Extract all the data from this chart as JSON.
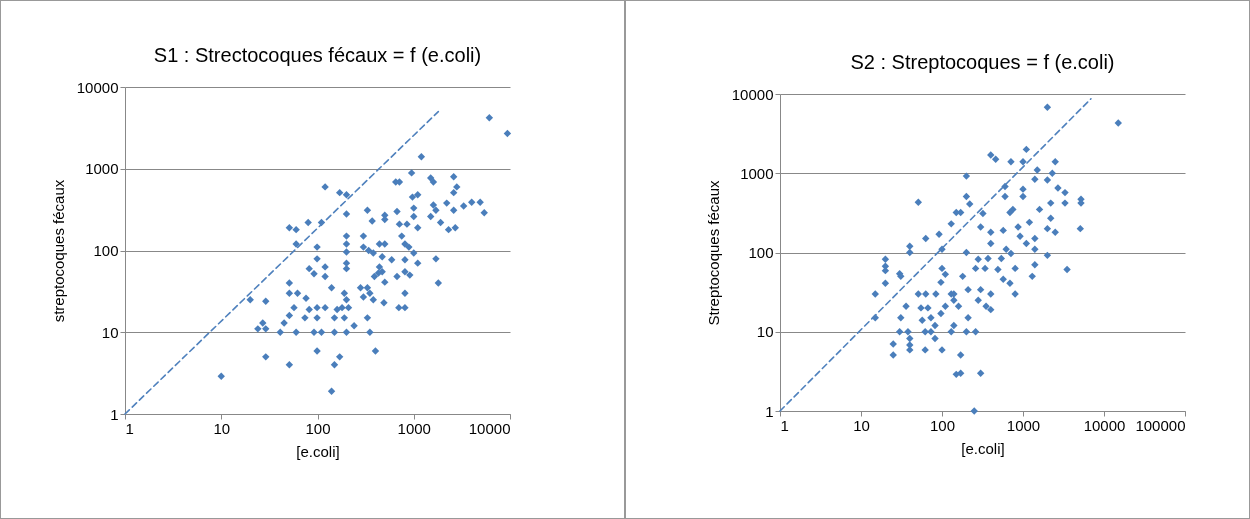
{
  "chart_data": [
    {
      "type": "scatter",
      "title": "S1 : Strectocoques fécaux = f (e.coli)",
      "xlabel": "[e.coli]",
      "ylabel": "streptocoques fécaux",
      "log": "xy",
      "grid": "y",
      "marker": "diamond",
      "xlim": [
        1,
        10000
      ],
      "xticks": [
        1,
        10,
        100,
        1000,
        10000
      ],
      "ylim": [
        1,
        10000
      ],
      "yticks": [
        1,
        10,
        100,
        1000,
        10000
      ],
      "series": [
        {
          "type": "scatter",
          "color": "#4a7ebb",
          "x": [
            51,
            60,
            80,
            60,
            82,
            51,
            51,
            62,
            76,
            57,
            51,
            74,
            45,
            20,
            29,
            27,
            24,
            29,
            41,
            60,
            29,
            51,
            10,
            6100,
            9400,
            1200,
            950,
            650,
            710,
            1500,
            1600,
            2600,
            2800,
            2600,
            1100,
            970,
            120,
            170,
            200,
            2200,
            3300,
            4000,
            4900,
            5400,
            1600,
            1700,
            1500,
            1900,
            2600,
            2300,
            2700,
            1000,
            1000,
            1100,
            710,
            850,
            670,
            500,
            500,
            370,
            330,
            200,
            110,
            99,
            99,
            92,
            120,
            120,
            200,
            200,
            200,
            200,
            200,
            300,
            300,
            340,
            380,
            440,
            500,
            470,
            440,
            430,
            470,
            390,
            500,
            590,
            810,
            670,
            810,
            910,
            750,
            810,
            890,
            1000,
            1100,
            1700,
            1800,
            810,
            700,
            810,
            490,
            380,
            330,
            280,
            300,
            350,
            330,
            240,
            350,
            400,
            140,
            190,
            200,
            180,
            160,
            210,
            150,
            190,
            82,
            99,
            120,
            99,
            92,
            110,
            150,
            200,
            99,
            150,
            170,
            140
          ],
          "values": [
            190,
            180,
            220,
            120,
            60,
            40,
            30,
            30,
            26,
            20,
            16,
            15,
            13,
            25,
            24,
            13,
            11,
            11,
            10,
            10,
            5,
            4,
            2.9,
            4200,
            2700,
            1400,
            890,
            690,
            690,
            770,
            690,
            800,
            600,
            510,
            480,
            450,
            600,
            510,
            480,
            380,
            350,
            390,
            390,
            290,
            360,
            310,
            260,
            220,
            310,
            180,
            190,
            330,
            260,
            190,
            210,
            210,
            300,
            270,
            240,
            230,
            310,
            280,
            220,
            110,
            79,
            52,
            63,
            48,
            150,
            120,
            96,
            70,
            60,
            150,
            110,
            100,
            93,
            120,
            120,
            84,
            63,
            53,
            55,
            48,
            41,
            77,
            77,
            48,
            55,
            50,
            150,
            120,
            110,
            93,
            70,
            79,
            40,
            30,
            20,
            20,
            23,
            25,
            35,
            35,
            27,
            30,
            15,
            12,
            10,
            5.9,
            35,
            30,
            25,
            20,
            19,
            20,
            15,
            15,
            19,
            20,
            20,
            15,
            10,
            10,
            10,
            10,
            5.9,
            4,
            5,
            1.9
          ]
        },
        {
          "type": "line",
          "color": "#4f81bd",
          "line_style": "dashed",
          "marker": "none",
          "x": [
            1,
            1800
          ],
          "values": [
            1,
            5000
          ]
        }
      ]
    },
    {
      "type": "scatter",
      "title": "S2 : Streptocoques = f (e.coli)",
      "xlabel": "[e.coli]",
      "ylabel": "Streptocoques fécaux",
      "log": "xy",
      "grid": "y",
      "marker": "diamond",
      "xlim": [
        1,
        100000
      ],
      "xticks": [
        1,
        10,
        100,
        1000,
        10000,
        100000
      ],
      "ylim": [
        1,
        10000
      ],
      "yticks": [
        1,
        10,
        100,
        1000,
        10000
      ],
      "series": [
        {
          "type": "scatter",
          "color": "#4a7ebb",
          "x": [
            51,
            63,
            92,
            130,
            150,
            40,
            40,
            100,
            20,
            20,
            20,
            30,
            31,
            20,
            15,
            51,
            63,
            84,
            100,
            110,
            97,
            130,
            140,
            110,
            97,
            36,
            55,
            67,
            73,
            15,
            31,
            57,
            82,
            30,
            38,
            62,
            73,
            130,
            40,
            82,
            25,
            40,
            40,
            62,
            100,
            25,
            150,
            2000,
            15000,
            400,
            460,
            710,
            1100,
            1000,
            2500,
            2300,
            1500,
            1400,
            2000,
            200,
            600,
            1000,
            600,
            1000,
            2700,
            3300,
            3300,
            5200,
            5200,
            2200,
            1600,
            750,
            690,
            200,
            220,
            170,
            320,
            300,
            400,
            570,
            870,
            1200,
            2200,
            2000,
            2500,
            5100,
            920,
            400,
            620,
            1100,
            1400,
            1400,
            200,
            2000,
            280,
            370,
            540,
            710,
            260,
            340,
            490,
            800,
            1400,
            3500,
            1300,
            570,
            690,
            800,
            180,
            210,
            140,
            300,
            400,
            280,
            350,
            400,
            160,
            210,
            140,
            200,
            260,
            170,
            170,
            300,
            250
          ],
          "values": [
            430,
            150,
            170,
            230,
            320,
            120,
            100,
            110,
            82,
            67,
            59,
            54,
            50,
            41,
            30,
            30,
            30,
            30,
            63,
            53,
            42,
            30,
            25,
            21,
            17,
            21,
            20,
            20,
            15,
            15,
            15,
            14,
            12,
            10,
            10,
            10,
            10,
            10,
            8.2,
            8.2,
            7,
            6.8,
            5.9,
            5.9,
            5.9,
            5.1,
            2.9,
            6800,
            4300,
            1700,
            1500,
            1400,
            2000,
            1400,
            1400,
            1000,
            1100,
            840,
            820,
            920,
            680,
            630,
            510,
            510,
            650,
            570,
            420,
            470,
            420,
            420,
            350,
            350,
            320,
            510,
            410,
            320,
            310,
            210,
            180,
            190,
            210,
            240,
            270,
            200,
            180,
            200,
            160,
            130,
            110,
            130,
            150,
            110,
            100,
            92,
            82,
            84,
            84,
            97,
            63,
            63,
            61,
            63,
            70,
            61,
            50,
            46,
            41,
            30,
            50,
            34,
            30,
            34,
            30,
            25,
            21,
            19,
            21,
            15,
            12,
            10,
            10,
            5.1,
            3,
            3,
            1
          ]
        },
        {
          "type": "line",
          "color": "#4f81bd",
          "line_style": "dashed",
          "marker": "none",
          "x": [
            1,
            6900
          ],
          "values": [
            1,
            8700
          ]
        }
      ]
    }
  ]
}
